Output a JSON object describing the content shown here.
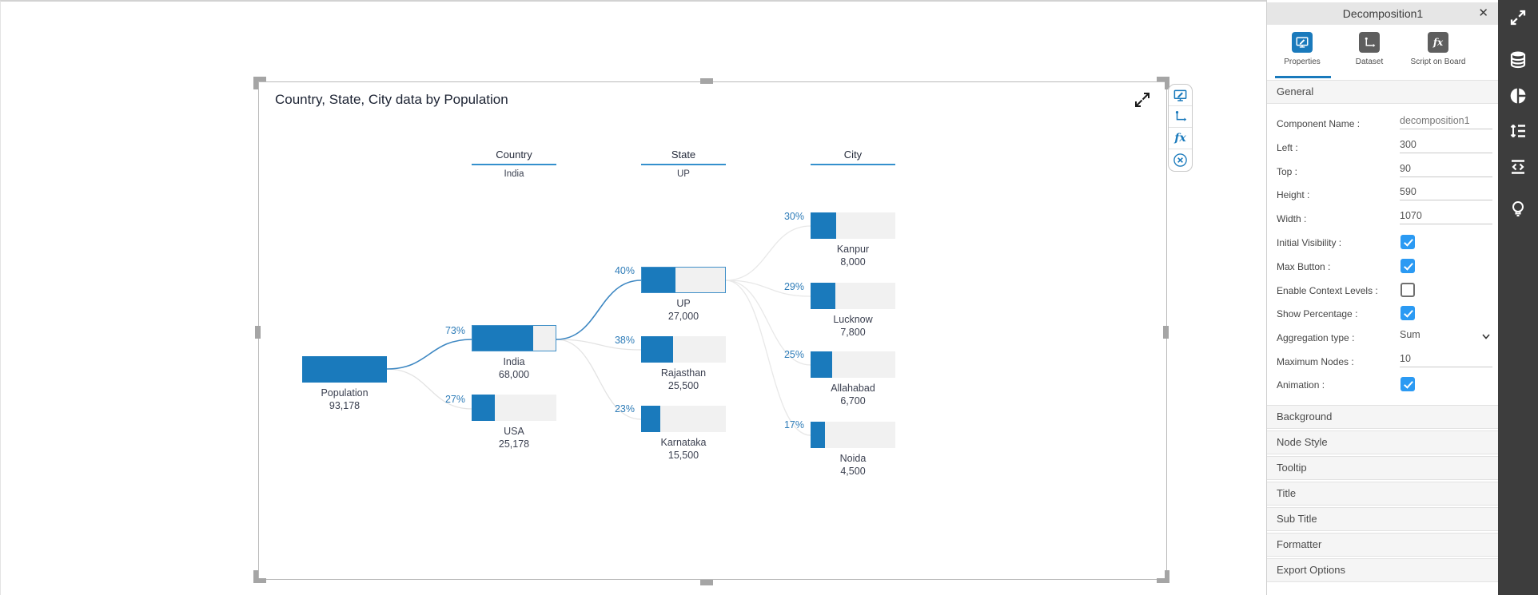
{
  "canvas": {
    "chart": {
      "title": "Country, State, City data by Population",
      "levels": [
        {
          "label": "Country",
          "selected": "India"
        },
        {
          "label": "State",
          "selected": "UP"
        },
        {
          "label": "City",
          "selected": ""
        }
      ],
      "nodes": [
        {
          "name": "Population",
          "value": "93,178",
          "pct": 100,
          "pct_label": ""
        },
        {
          "name": "India",
          "value": "68,000",
          "pct": 73,
          "pct_label": "73%"
        },
        {
          "name": "USA",
          "value": "25,178",
          "pct": 27,
          "pct_label": "27%"
        },
        {
          "name": "UP",
          "value": "27,000",
          "pct": 40,
          "pct_label": "40%"
        },
        {
          "name": "Rajasthan",
          "value": "25,500",
          "pct": 38,
          "pct_label": "38%"
        },
        {
          "name": "Karnataka",
          "value": "15,500",
          "pct": 23,
          "pct_label": "23%"
        },
        {
          "name": "Kanpur",
          "value": "8,000",
          "pct": 30,
          "pct_label": "30%"
        },
        {
          "name": "Lucknow",
          "value": "7,800",
          "pct": 29,
          "pct_label": "29%"
        },
        {
          "name": "Allahabad",
          "value": "6,700",
          "pct": 25,
          "pct_label": "25%"
        },
        {
          "name": "Noida",
          "value": "4,500",
          "pct": 17,
          "pct_label": "17%"
        }
      ],
      "toolbar": {
        "fx_label": "fx"
      }
    }
  },
  "panel": {
    "title": "Decomposition1",
    "close_label": "✕",
    "tabs": [
      {
        "label": "Properties",
        "active": true
      },
      {
        "label": "Dataset",
        "active": false
      },
      {
        "label": "Script on Board",
        "active": false
      }
    ],
    "script_tab_fx": "fx",
    "general_label": "General",
    "fields": {
      "component_name": {
        "label": "Component Name :",
        "value": "decomposition1"
      },
      "left": {
        "label": "Left :",
        "value": "300"
      },
      "top": {
        "label": "Top :",
        "value": "90"
      },
      "height": {
        "label": "Height :",
        "value": "590"
      },
      "width": {
        "label": "Width :",
        "value": "1070"
      },
      "initial_visibility": {
        "label": "Initial Visibility :",
        "checked": true
      },
      "max_button": {
        "label": "Max Button :",
        "checked": true
      },
      "enable_context_levels": {
        "label": "Enable Context Levels :",
        "checked": false
      },
      "show_percentage": {
        "label": "Show Percentage :",
        "checked": true
      },
      "aggregation_type": {
        "label": "Aggregation type :",
        "value": "Sum"
      },
      "maximum_nodes": {
        "label": "Maximum Nodes :",
        "value": "10"
      },
      "animation": {
        "label": "Animation :",
        "checked": true
      }
    },
    "accordions": [
      "Background",
      "Node Style",
      "Tooltip",
      "Title",
      "Sub Title",
      "Formatter",
      "Export Options"
    ]
  },
  "colors": {
    "accent": "#1a7abc",
    "node_fill": "#1a7abc",
    "node_track": "#f1f1f1",
    "checkbox_blue": "#2b9af3",
    "link_active": "#3d87c2",
    "link_inactive": "#e3e3e3",
    "sidebar_bg": "#3d3d3d"
  },
  "chart_data": {
    "type": "decomposition-tree",
    "title": "Country, State, City data by Population",
    "levels": [
      "Country",
      "State",
      "City"
    ],
    "root": {
      "name": "Population",
      "value": 93178
    },
    "selected_path": [
      "Population",
      "India",
      "UP"
    ],
    "nodes": [
      {
        "level": "Country",
        "parent": "Population",
        "name": "India",
        "value": 68000,
        "pct": 73,
        "on_selected_path": true
      },
      {
        "level": "Country",
        "parent": "Population",
        "name": "USA",
        "value": 25178,
        "pct": 27,
        "on_selected_path": false
      },
      {
        "level": "State",
        "parent": "India",
        "name": "UP",
        "value": 27000,
        "pct": 40,
        "on_selected_path": true
      },
      {
        "level": "State",
        "parent": "India",
        "name": "Rajasthan",
        "value": 25500,
        "pct": 38,
        "on_selected_path": false
      },
      {
        "level": "State",
        "parent": "India",
        "name": "Karnataka",
        "value": 15500,
        "pct": 23,
        "on_selected_path": false
      },
      {
        "level": "City",
        "parent": "UP",
        "name": "Kanpur",
        "value": 8000,
        "pct": 30,
        "on_selected_path": false
      },
      {
        "level": "City",
        "parent": "UP",
        "name": "Lucknow",
        "value": 7800,
        "pct": 29,
        "on_selected_path": false
      },
      {
        "level": "City",
        "parent": "UP",
        "name": "Allahabad",
        "value": 6700,
        "pct": 25,
        "on_selected_path": false
      },
      {
        "level": "City",
        "parent": "UP",
        "name": "Noida",
        "value": 4500,
        "pct": 17,
        "on_selected_path": false
      }
    ]
  }
}
